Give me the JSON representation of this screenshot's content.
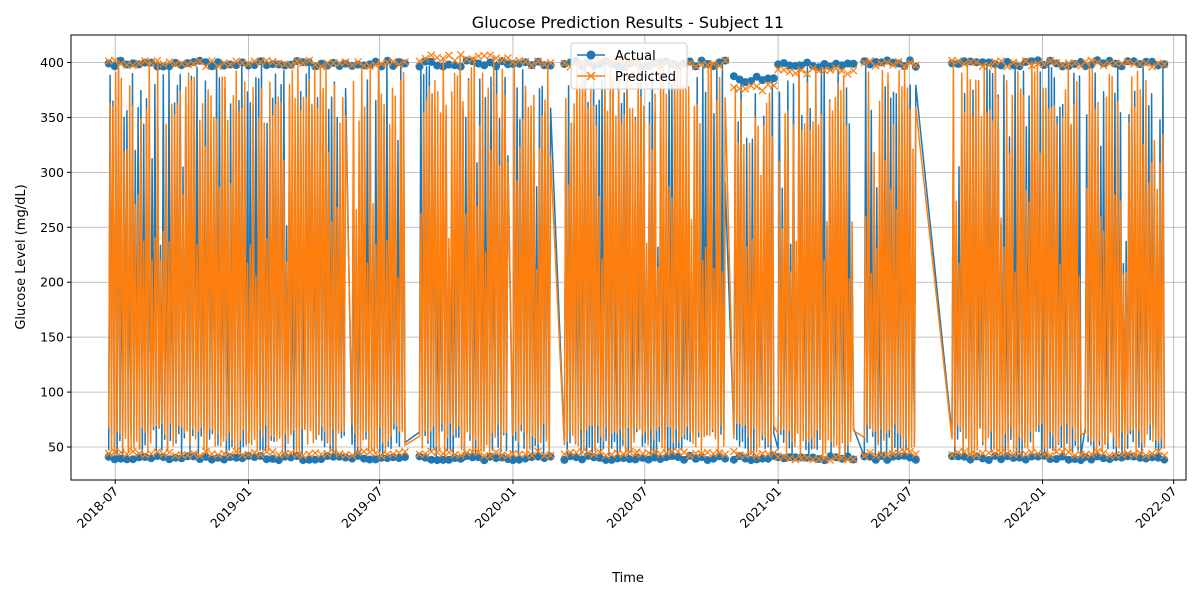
{
  "chart_data": {
    "type": "line",
    "title": "Glucose Prediction Results - Subject 11",
    "xlabel": "Time",
    "ylabel": "Glucose Level (mg/dL)",
    "x_ticks": [
      "2018-07",
      "2019-01",
      "2019-07",
      "2020-01",
      "2020-07",
      "2021-01",
      "2021-07",
      "2022-01",
      "2022-07"
    ],
    "y_ticks": [
      50,
      100,
      150,
      200,
      250,
      300,
      350,
      400
    ],
    "xlim": [
      "2018-05-01",
      "2022-07-18"
    ],
    "ylim": [
      20,
      425
    ],
    "grid": true,
    "legend": "top-center",
    "series": [
      {
        "name": "Actual",
        "color": "#1f77b4",
        "marker": "circle",
        "segments": [
          {
            "start": "2018-06-22",
            "end": "2019-05-15",
            "min": 38,
            "max": 402
          },
          {
            "start": "2019-05-24",
            "end": "2019-08-05",
            "min": 38,
            "max": 402
          },
          {
            "start": "2019-08-25",
            "end": "2019-12-25",
            "min": 38,
            "max": 402
          },
          {
            "start": "2020-01-01",
            "end": "2020-02-22",
            "min": 38,
            "max": 402
          },
          {
            "start": "2020-03-12",
            "end": "2020-06-18",
            "min": 38,
            "max": 402
          },
          {
            "start": "2020-06-20",
            "end": "2020-10-20",
            "min": 38,
            "max": 402
          },
          {
            "start": "2020-11-01",
            "end": "2020-12-26",
            "min": 38,
            "max": 388
          },
          {
            "start": "2021-01-01",
            "end": "2021-04-15",
            "min": 38,
            "max": 401
          },
          {
            "start": "2021-04-30",
            "end": "2021-07-10",
            "min": 38,
            "max": 402
          },
          {
            "start": "2021-08-29",
            "end": "2022-02-23",
            "min": 38,
            "max": 402
          },
          {
            "start": "2022-03-01",
            "end": "2022-06-18",
            "min": 38,
            "max": 402
          }
        ]
      },
      {
        "name": "Predicted",
        "color": "#ff7f0e",
        "marker": "x",
        "segments": [
          {
            "start": "2018-06-22",
            "end": "2019-05-15",
            "min": 42,
            "max": 402
          },
          {
            "start": "2019-05-24",
            "end": "2019-08-05",
            "min": 42,
            "max": 402
          },
          {
            "start": "2019-08-25",
            "end": "2019-12-25",
            "min": 42,
            "max": 407
          },
          {
            "start": "2020-01-01",
            "end": "2020-02-22",
            "min": 42,
            "max": 402
          },
          {
            "start": "2020-03-12",
            "end": "2020-06-18",
            "min": 42,
            "max": 402
          },
          {
            "start": "2020-06-20",
            "end": "2020-10-20",
            "min": 42,
            "max": 402
          },
          {
            "start": "2020-11-01",
            "end": "2020-12-26",
            "min": 42,
            "max": 380
          },
          {
            "start": "2021-01-01",
            "end": "2021-04-15",
            "min": 38,
            "max": 395
          },
          {
            "start": "2021-04-30",
            "end": "2021-07-10",
            "min": 42,
            "max": 402
          },
          {
            "start": "2021-08-29",
            "end": "2022-02-23",
            "min": 42,
            "max": 402
          },
          {
            "start": "2022-03-01",
            "end": "2022-06-18",
            "min": 42,
            "max": 402
          }
        ]
      }
    ]
  }
}
